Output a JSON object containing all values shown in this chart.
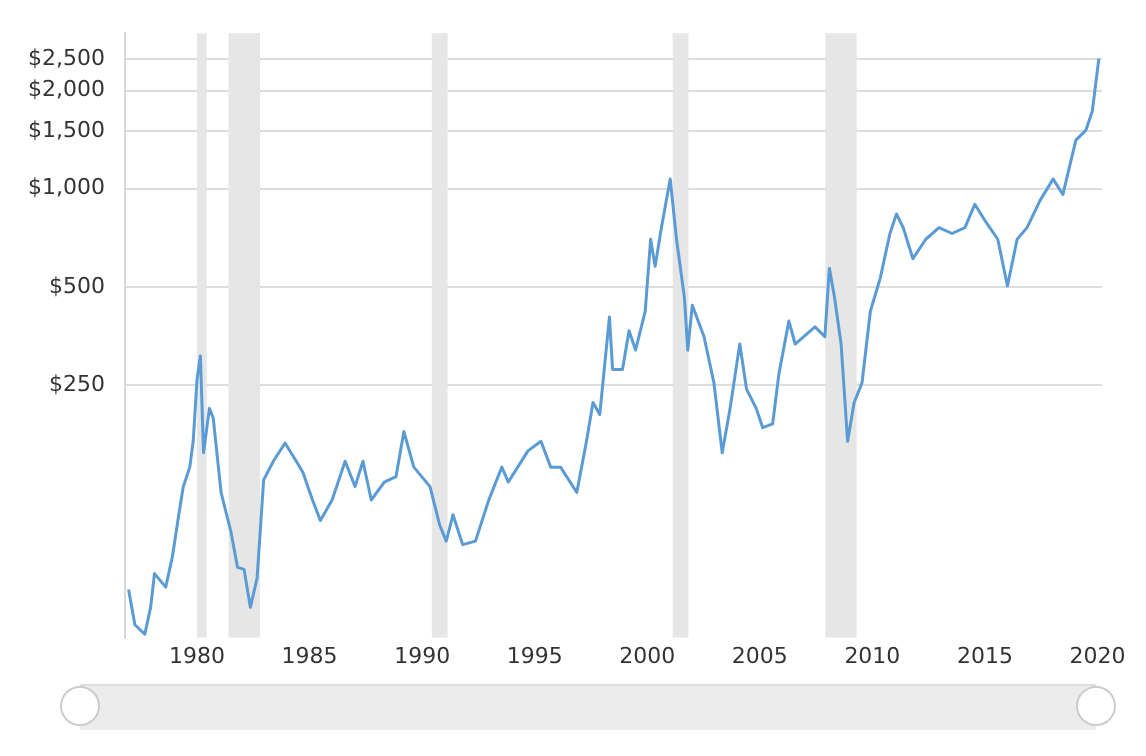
{
  "chart_data": {
    "type": "line",
    "log": "y",
    "grid": "y",
    "legend": false,
    "marker": "none",
    "line_style": "solid",
    "xlim": [
      1976.8,
      2020.2
    ],
    "xticks": [
      1980,
      1985,
      1990,
      1995,
      2000,
      2005,
      2010,
      2015,
      2020
    ],
    "ylim": [
      42,
      3000
    ],
    "yticks": [
      {
        "value": 250,
        "label": "$250"
      },
      {
        "value": 500,
        "label": "$500"
      },
      {
        "value": 1000,
        "label": "$1,000"
      },
      {
        "value": 1500,
        "label": "$1,500"
      },
      {
        "value": 2000,
        "label": "$2,000"
      },
      {
        "value": 2500,
        "label": "$2,500"
      }
    ],
    "bands": [
      {
        "axis": "x",
        "from": 1980.0,
        "to": 1980.43,
        "color": "#e6e6e6"
      },
      {
        "axis": "x",
        "from": 1981.4,
        "to": 1982.8,
        "color": "#e6e6e6"
      },
      {
        "axis": "x",
        "from": 1990.43,
        "to": 1991.13,
        "color": "#e6e6e6"
      },
      {
        "axis": "x",
        "from": 2001.13,
        "to": 2001.83,
        "color": "#e6e6e6"
      },
      {
        "axis": "x",
        "from": 2007.91,
        "to": 2009.3,
        "color": "#e6e6e6"
      }
    ],
    "series": [
      {
        "color": "#5b9bd5",
        "x": [
          1976.96,
          1977.24,
          1977.68,
          1977.94,
          1978.11,
          1978.61,
          1978.9,
          1979.19,
          1979.39,
          1979.68,
          1979.83,
          1980.0,
          1980.15,
          1980.29,
          1980.55,
          1980.72,
          1981.07,
          1981.5,
          1981.8,
          1982.09,
          1982.37,
          1982.67,
          1982.96,
          1983.39,
          1983.91,
          1984.41,
          1984.7,
          1985.13,
          1985.48,
          1986.0,
          1986.58,
          1987.02,
          1987.37,
          1987.74,
          1988.32,
          1988.84,
          1989.19,
          1989.63,
          1990.35,
          1990.78,
          1991.07,
          1991.37,
          1991.8,
          1992.37,
          1992.96,
          1993.54,
          1993.83,
          1994.7,
          1995.28,
          1995.71,
          1996.15,
          1996.87,
          1997.3,
          1997.59,
          1997.89,
          1998.32,
          1998.46,
          1998.9,
          1999.19,
          1999.48,
          1999.91,
          2000.15,
          2000.35,
          2000.63,
          2001.02,
          2001.3,
          2001.65,
          2001.8,
          2002.0,
          2002.52,
          2002.96,
          2003.33,
          2003.68,
          2004.11,
          2004.41,
          2004.84,
          2005.13,
          2005.57,
          2005.85,
          2006.29,
          2006.57,
          2007.45,
          2007.89,
          2008.09,
          2008.32,
          2008.61,
          2008.9,
          2009.19,
          2009.54,
          2009.91,
          2010.35,
          2010.78,
          2011.07,
          2011.37,
          2011.8,
          2012.37,
          2012.96,
          2013.54,
          2014.11,
          2014.55,
          2014.98,
          2015.57,
          2016.0,
          2016.43,
          2016.87,
          2017.45,
          2018.03,
          2018.46,
          2019.04,
          2019.48,
          2019.77,
          2020.06
        ],
        "values": [
          59,
          46,
          43,
          52,
          66,
          60,
          74,
          100,
          122,
          140,
          168,
          260,
          307,
          155,
          212,
          198,
          117,
          89,
          69,
          68,
          52,
          64,
          128,
          146,
          166,
          146,
          135,
          111,
          96,
          111,
          146,
          122,
          146,
          111,
          126,
          131,
          180,
          140,
          122,
          93,
          83,
          100,
          81,
          83,
          111,
          140,
          126,
          157,
          168,
          140,
          140,
          117,
          168,
          221,
          203,
          404,
          279,
          279,
          367,
          320,
          421,
          700,
          578,
          760,
          1071,
          700,
          464,
          320,
          439,
          352,
          254,
          155,
          212,
          334,
          243,
          212,
          185,
          190,
          271,
          393,
          334,
          377,
          352,
          570,
          464,
          334,
          168,
          221,
          254,
          421,
          532,
          729,
          837,
          760,
          610,
          700,
          760,
          729,
          760,
          896,
          803,
          700,
          503,
          700,
          760,
          921,
          1071,
          960,
          1410,
          1510,
          1732,
          2508
        ]
      }
    ]
  }
}
